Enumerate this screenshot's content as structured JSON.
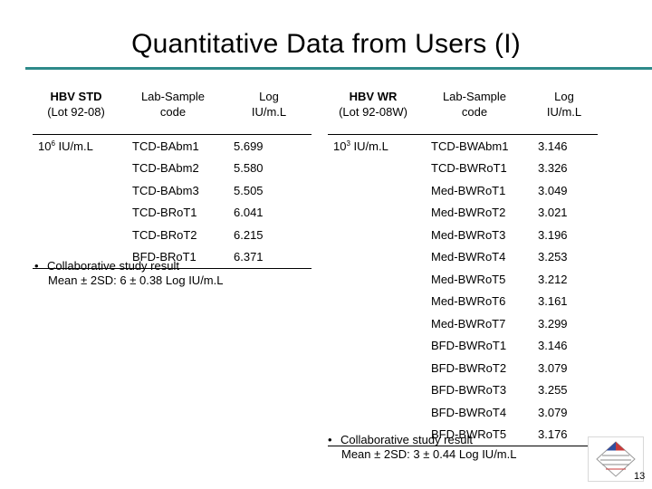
{
  "title": "Quantitative Data from Users (I)",
  "left_table": {
    "header": {
      "col1_line1": "HBV STD",
      "col1_line2": "(Lot 92-08)",
      "col2_line1": "Lab-Sample",
      "col2_line2": "code",
      "col3_line1": "Log",
      "col3_line2": "IU/m.L"
    },
    "concentration_base": "10",
    "concentration_exp": "6",
    "concentration_unit": " IU/m.L",
    "rows": [
      {
        "code": "TCD-BAbm1",
        "value": "5.699"
      },
      {
        "code": "TCD-BAbm2",
        "value": "5.580"
      },
      {
        "code": "TCD-BAbm3",
        "value": "5.505"
      },
      {
        "code": "TCD-BRoT1",
        "value": "6.041"
      },
      {
        "code": "TCD-BRoT2",
        "value": "6.215"
      },
      {
        "code": "BFD-BRoT1",
        "value": "6.371"
      }
    ],
    "note_line1": "Collaborative study result",
    "note_line2": "Mean ± 2SD: 6 ± 0.38 Log IU/m.L"
  },
  "right_table": {
    "header": {
      "col1_line1": "HBV WR",
      "col1_line2": "(Lot 92-08W)",
      "col2_line1": "Lab-Sample",
      "col2_line2": "code",
      "col3_line1": "Log",
      "col3_line2": "IU/m.L"
    },
    "concentration_base": "10",
    "concentration_exp": "3",
    "concentration_unit": " IU/m.L",
    "rows": [
      {
        "code": "TCD-BWAbm1",
        "value": "3.146"
      },
      {
        "code": "TCD-BWRoT1",
        "value": "3.326"
      },
      {
        "code": "Med-BWRoT1",
        "value": "3.049"
      },
      {
        "code": "Med-BWRoT2",
        "value": "3.021"
      },
      {
        "code": "Med-BWRoT3",
        "value": "3.196"
      },
      {
        "code": "Med-BWRoT4",
        "value": "3.253"
      },
      {
        "code": "Med-BWRoT5",
        "value": "3.212"
      },
      {
        "code": "Med-BWRoT6",
        "value": "3.161"
      },
      {
        "code": "Med-BWRoT7",
        "value": "3.299"
      },
      {
        "code": "BFD-BWRoT1",
        "value": "3.146"
      },
      {
        "code": "BFD-BWRoT2",
        "value": "3.079"
      },
      {
        "code": "BFD-BWRoT3",
        "value": "3.255"
      },
      {
        "code": "BFD-BWRoT4",
        "value": "3.079"
      },
      {
        "code": "BFD-BWRoT5",
        "value": "3.176"
      }
    ],
    "note_line1": "Collaborative study result",
    "note_line2": "Mean ± 2SD: 3 ± 0.44 Log IU/m.L"
  },
  "bullet": "•",
  "logo_icon": "organization-logo-icon",
  "page_number": "13"
}
